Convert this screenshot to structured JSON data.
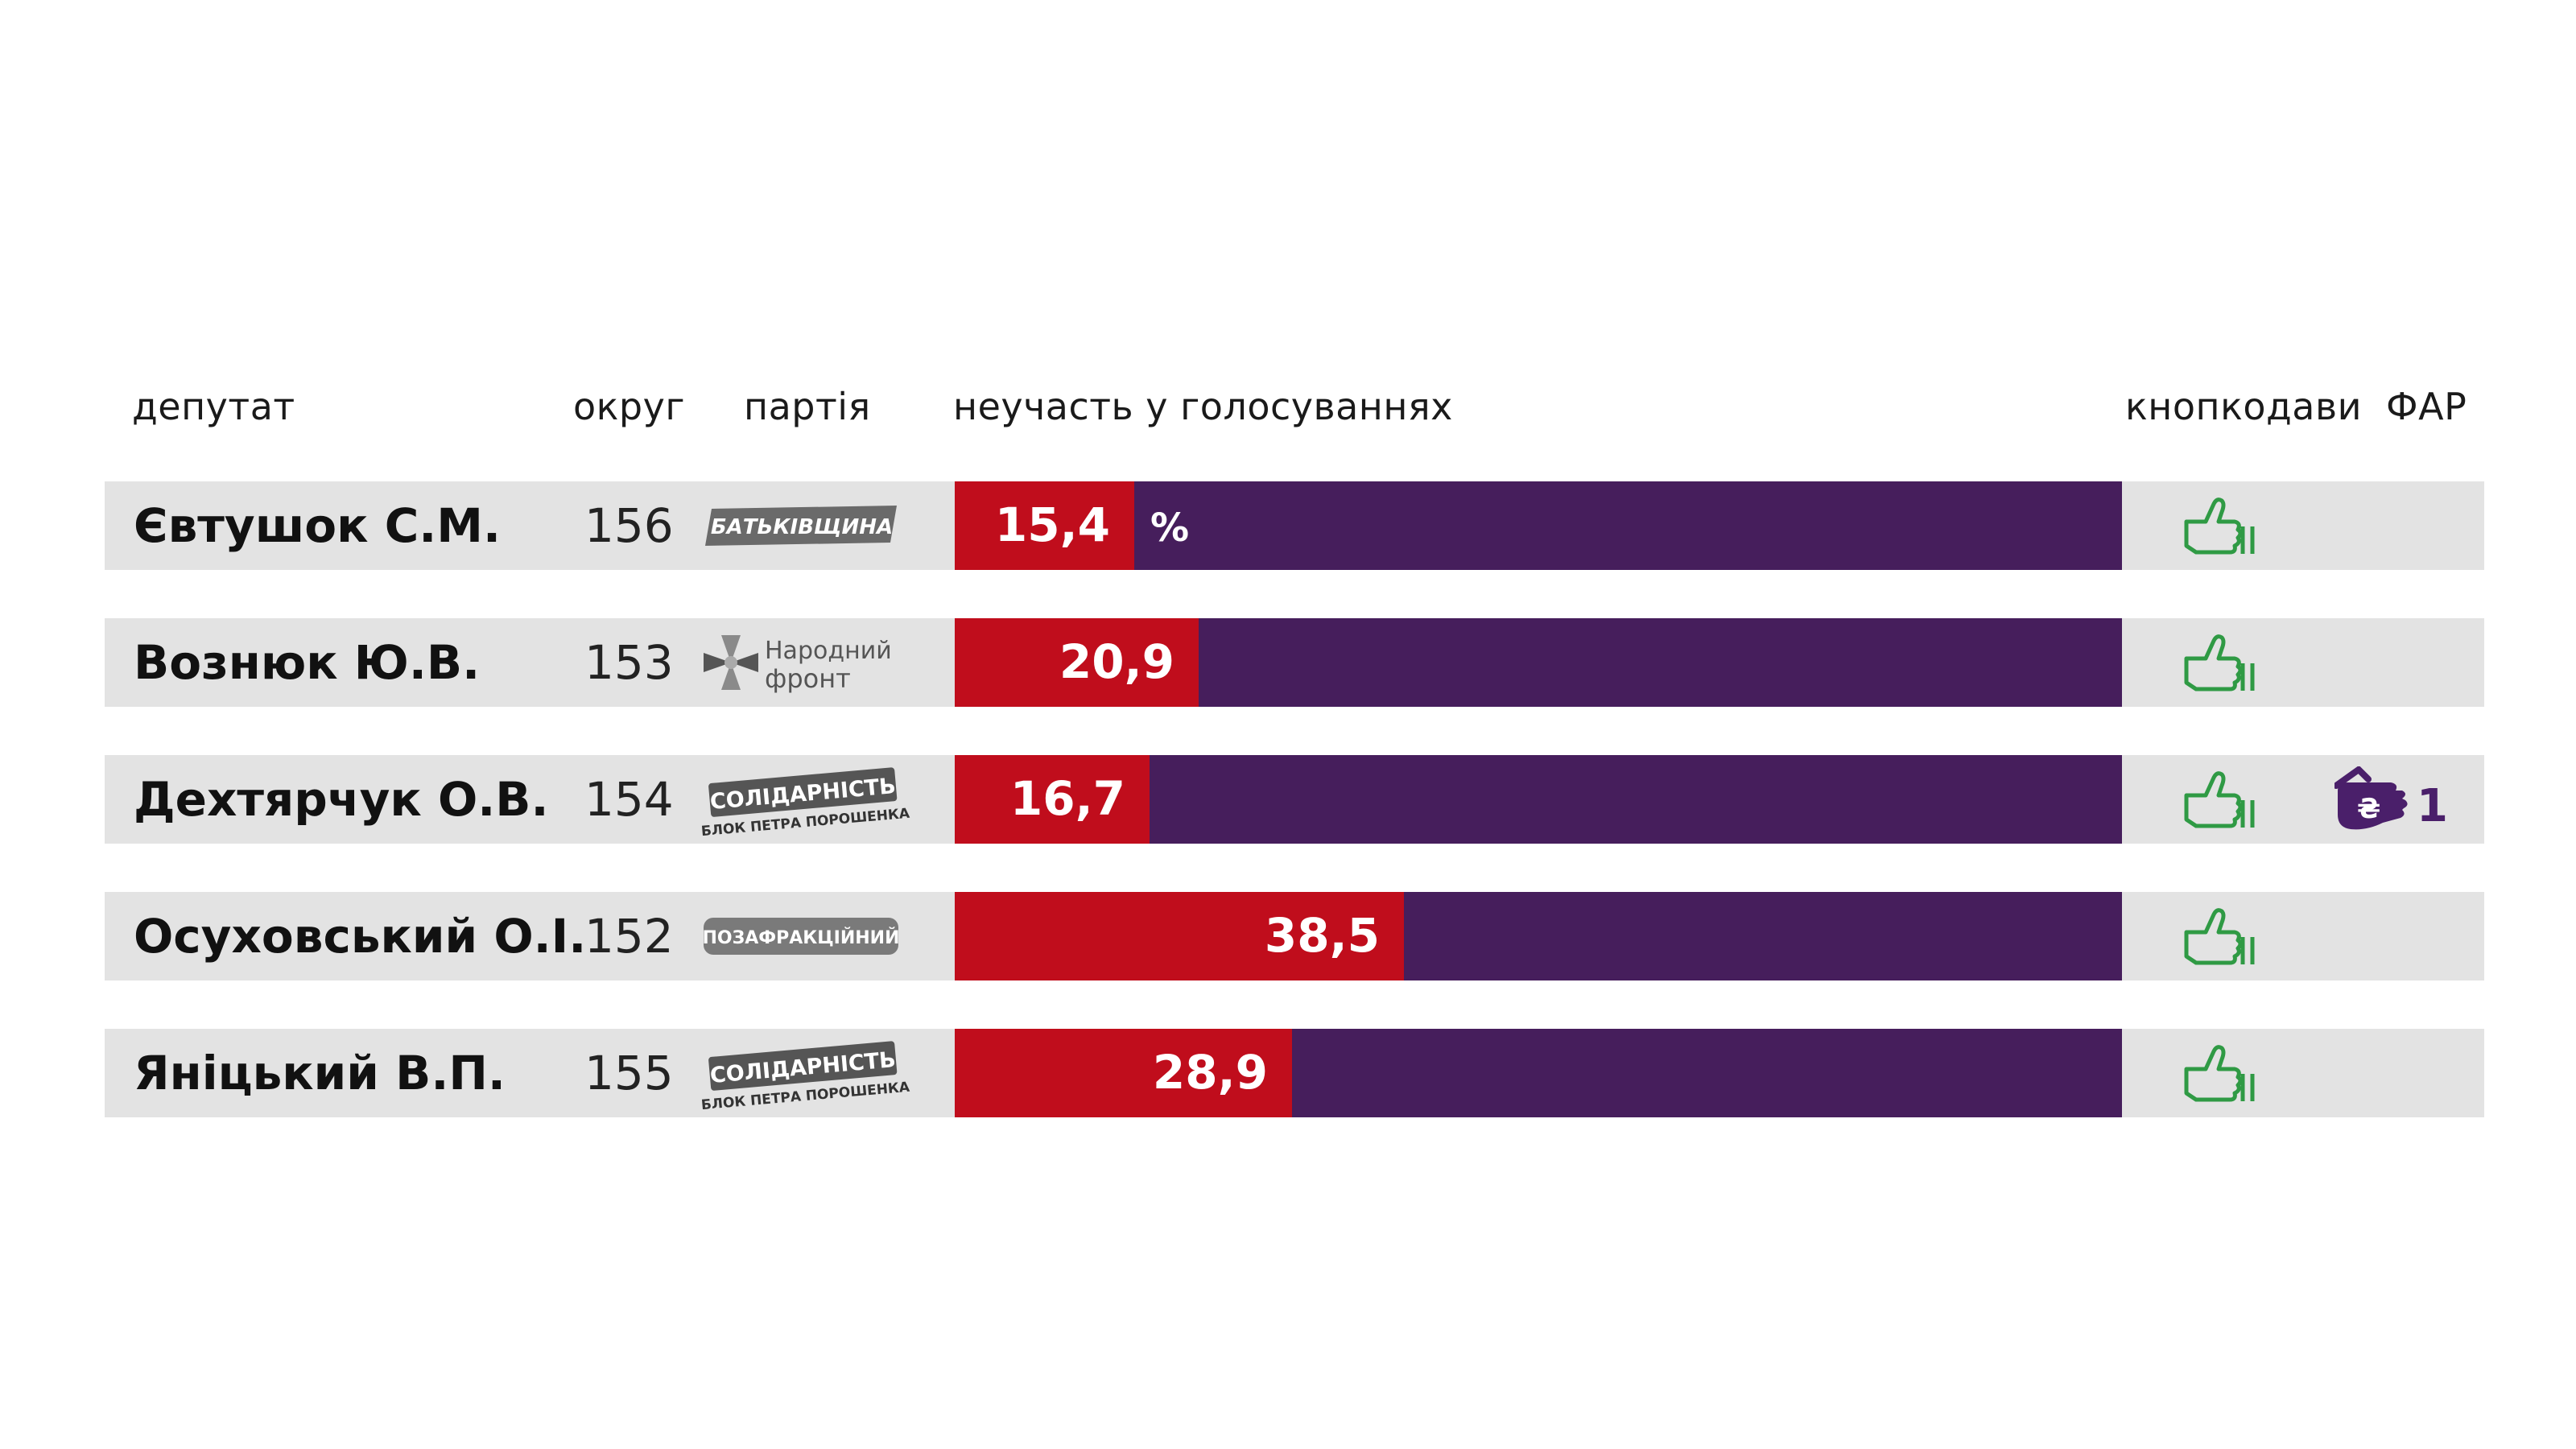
{
  "headers": {
    "deputy": "депутат",
    "district": "округ",
    "party": "партія",
    "absence": "неучасть у голосуваннях",
    "button_pushers": "кнопкодави",
    "far": "ФАР"
  },
  "colors": {
    "absence": "#c00d1c",
    "rest": "#461e5c",
    "row_bg": "#e3e3e3",
    "thumb": "#2f9a44"
  },
  "percent_sign": "%",
  "rows": [
    {
      "name": "Євтушок С.М.",
      "district": "156",
      "party": "batkivshchyna",
      "party_label": "БАТЬКІВЩИНА",
      "absence": 15.4,
      "absence_label": "15,4",
      "button_pusher": true,
      "far": null
    },
    {
      "name": "Вознюк Ю.В.",
      "district": "153",
      "party": "narodnyi-front",
      "party_label_1": "Народний",
      "party_label_2": "фронт",
      "absence": 20.9,
      "absence_label": "20,9",
      "button_pusher": true,
      "far": null
    },
    {
      "name": "Дехтярчук О.В.",
      "district": "154",
      "party": "solidarnist",
      "party_label_1": "СОЛІДАРНІСТЬ",
      "party_label_2": "БЛОК ПЕТРА ПОРОШЕНКА",
      "absence": 16.7,
      "absence_label": "16,7",
      "button_pusher": true,
      "far": "1"
    },
    {
      "name": "Осуховський О.І.",
      "district": "152",
      "party": "pozafraktsiinyi",
      "party_label": "ПОЗАФРАКЦІЙНИЙ",
      "absence": 38.5,
      "absence_label": "38,5",
      "button_pusher": true,
      "far": null
    },
    {
      "name": "Яніцький В.П.",
      "district": "155",
      "party": "solidarnist",
      "party_label_1": "СОЛІДАРНІСТЬ",
      "party_label_2": "БЛОК ПЕТРА ПОРОШЕНКА",
      "absence": 28.9,
      "absence_label": "28,9",
      "button_pusher": true,
      "far": null
    }
  ],
  "chart_data": {
    "type": "bar",
    "categories": [
      "Євтушок С.М.",
      "Вознюк Ю.В.",
      "Дехтярчук О.В.",
      "Осуховський О.І.",
      "Яніцький В.П."
    ],
    "series": [
      {
        "name": "неучасть у голосуваннях",
        "values": [
          15.4,
          20.9,
          16.7,
          38.5,
          28.9
        ]
      }
    ],
    "xlim": [
      0,
      100
    ],
    "orientation": "horizontal",
    "stacked_remainder": true
  }
}
